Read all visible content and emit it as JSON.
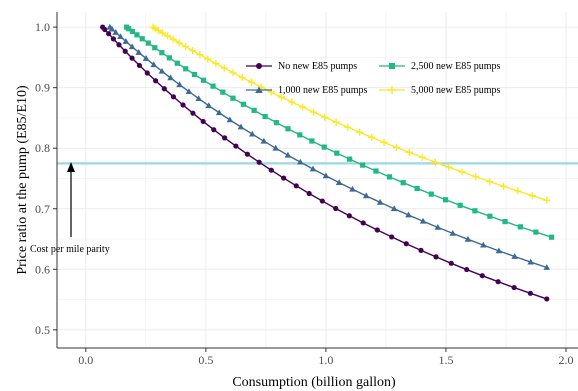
{
  "chart_data": {
    "type": "line",
    "xlabel": "Consumption (billion gallon)",
    "ylabel": "Price ratio at the pump (E85/E10)",
    "xlim": [
      -0.12,
      2.05
    ],
    "ylim": [
      0.47,
      1.025
    ],
    "x_ticks": [
      0.0,
      0.5,
      1.0,
      1.5,
      2.0
    ],
    "x_tick_labels": [
      "0.0",
      "0.5",
      "1.0",
      "1.5",
      "2.0"
    ],
    "y_ticks": [
      0.5,
      0.6,
      0.7,
      0.8,
      0.9,
      1.0
    ],
    "y_tick_labels": [
      "0.5",
      "0.6",
      "0.7",
      "0.8",
      "0.9",
      "1.0"
    ],
    "grid": true,
    "legend_position": "top-right",
    "series": [
      {
        "name": "No new E85 pumps",
        "color": "#440154",
        "marker": "circle",
        "x_start": 0.07,
        "x_end": 1.92,
        "y_end": 0.551,
        "points": 40
      },
      {
        "name": "1,000 new E85 pumps",
        "color": "#3b6a96",
        "marker": "triangle",
        "x_start": 0.1,
        "x_end": 1.92,
        "y_end": 0.603,
        "points": 40
      },
      {
        "name": "2,500 new E85 pumps",
        "color": "#21b883",
        "marker": "square",
        "x_start": 0.17,
        "x_end": 1.94,
        "y_end": 0.653,
        "points": 40
      },
      {
        "name": "5,000 new E85 pumps",
        "color": "#fde725",
        "marker": "plus",
        "x_start": 0.28,
        "x_end": 1.92,
        "y_end": 0.714,
        "points": 40
      }
    ],
    "reference_line": {
      "y": 0.775,
      "color": "#9ad8e6"
    },
    "annotation": {
      "text": "Cost per mile parity",
      "x": 0.07,
      "y_from": 0.64,
      "y_to": 0.775
    }
  }
}
